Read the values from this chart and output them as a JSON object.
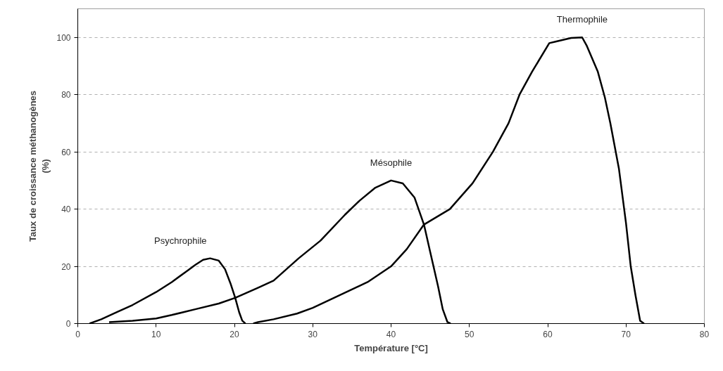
{
  "chart_data": {
    "type": "line",
    "xlabel": "Température [°C]",
    "ylabel": "Taux de croissance méthanogènes\n(%)",
    "xlim": [
      0,
      80
    ],
    "ylim": [
      0,
      110
    ],
    "xticks": [
      0,
      10,
      20,
      30,
      40,
      50,
      60,
      70,
      80
    ],
    "yticks": [
      0,
      20,
      40,
      60,
      80,
      100
    ],
    "grid": "y",
    "marker": "none",
    "line_style": "solid",
    "series": [
      {
        "name": "Psychrophile",
        "color": "#000000",
        "x": [
          1.5,
          3,
          5,
          7,
          10,
          12,
          14,
          15,
          16,
          16.9,
          18,
          18.8,
          19.5,
          20.1,
          20.6,
          21,
          21.4
        ],
        "values": [
          0,
          1.5,
          4,
          6.5,
          11,
          14.5,
          18.5,
          20.5,
          22.3,
          22.8,
          22,
          19,
          14,
          9,
          4,
          1,
          0
        ]
      },
      {
        "name": "Mésophile",
        "color": "#000000",
        "x": [
          4,
          7,
          10,
          12,
          15,
          18,
          20.1,
          23,
          25,
          28.2,
          31,
          34.1,
          36,
          38,
          40,
          41.5,
          43,
          44.2,
          45,
          46,
          46.6,
          47.2,
          47.6
        ],
        "values": [
          0.5,
          1,
          1.8,
          3,
          5,
          7,
          9,
          12.5,
          15,
          22.8,
          29,
          38,
          43,
          47.5,
          50,
          49,
          44,
          34.6,
          25,
          13,
          5,
          0.5,
          0
        ]
      },
      {
        "name": "Thermophile",
        "color": "#000000",
        "x": [
          22.4,
          23,
          25,
          28,
          30,
          34.1,
          37,
          40,
          42,
          44.2,
          47.5,
          50.4,
          53,
          55,
          56.4,
          58,
          60.2,
          61,
          63,
          64.4,
          65,
          66.4,
          67.3,
          68,
          69.1,
          70,
          70.6,
          71.2,
          71.8,
          72.3
        ],
        "values": [
          0,
          0.5,
          1.5,
          3.5,
          5.5,
          10.8,
          14.5,
          20,
          26,
          34.6,
          40,
          49,
          60,
          70,
          80,
          88,
          98,
          98.5,
          99.8,
          100,
          97,
          88,
          79,
          70,
          54,
          35,
          20,
          10,
          1,
          0
        ]
      }
    ]
  }
}
